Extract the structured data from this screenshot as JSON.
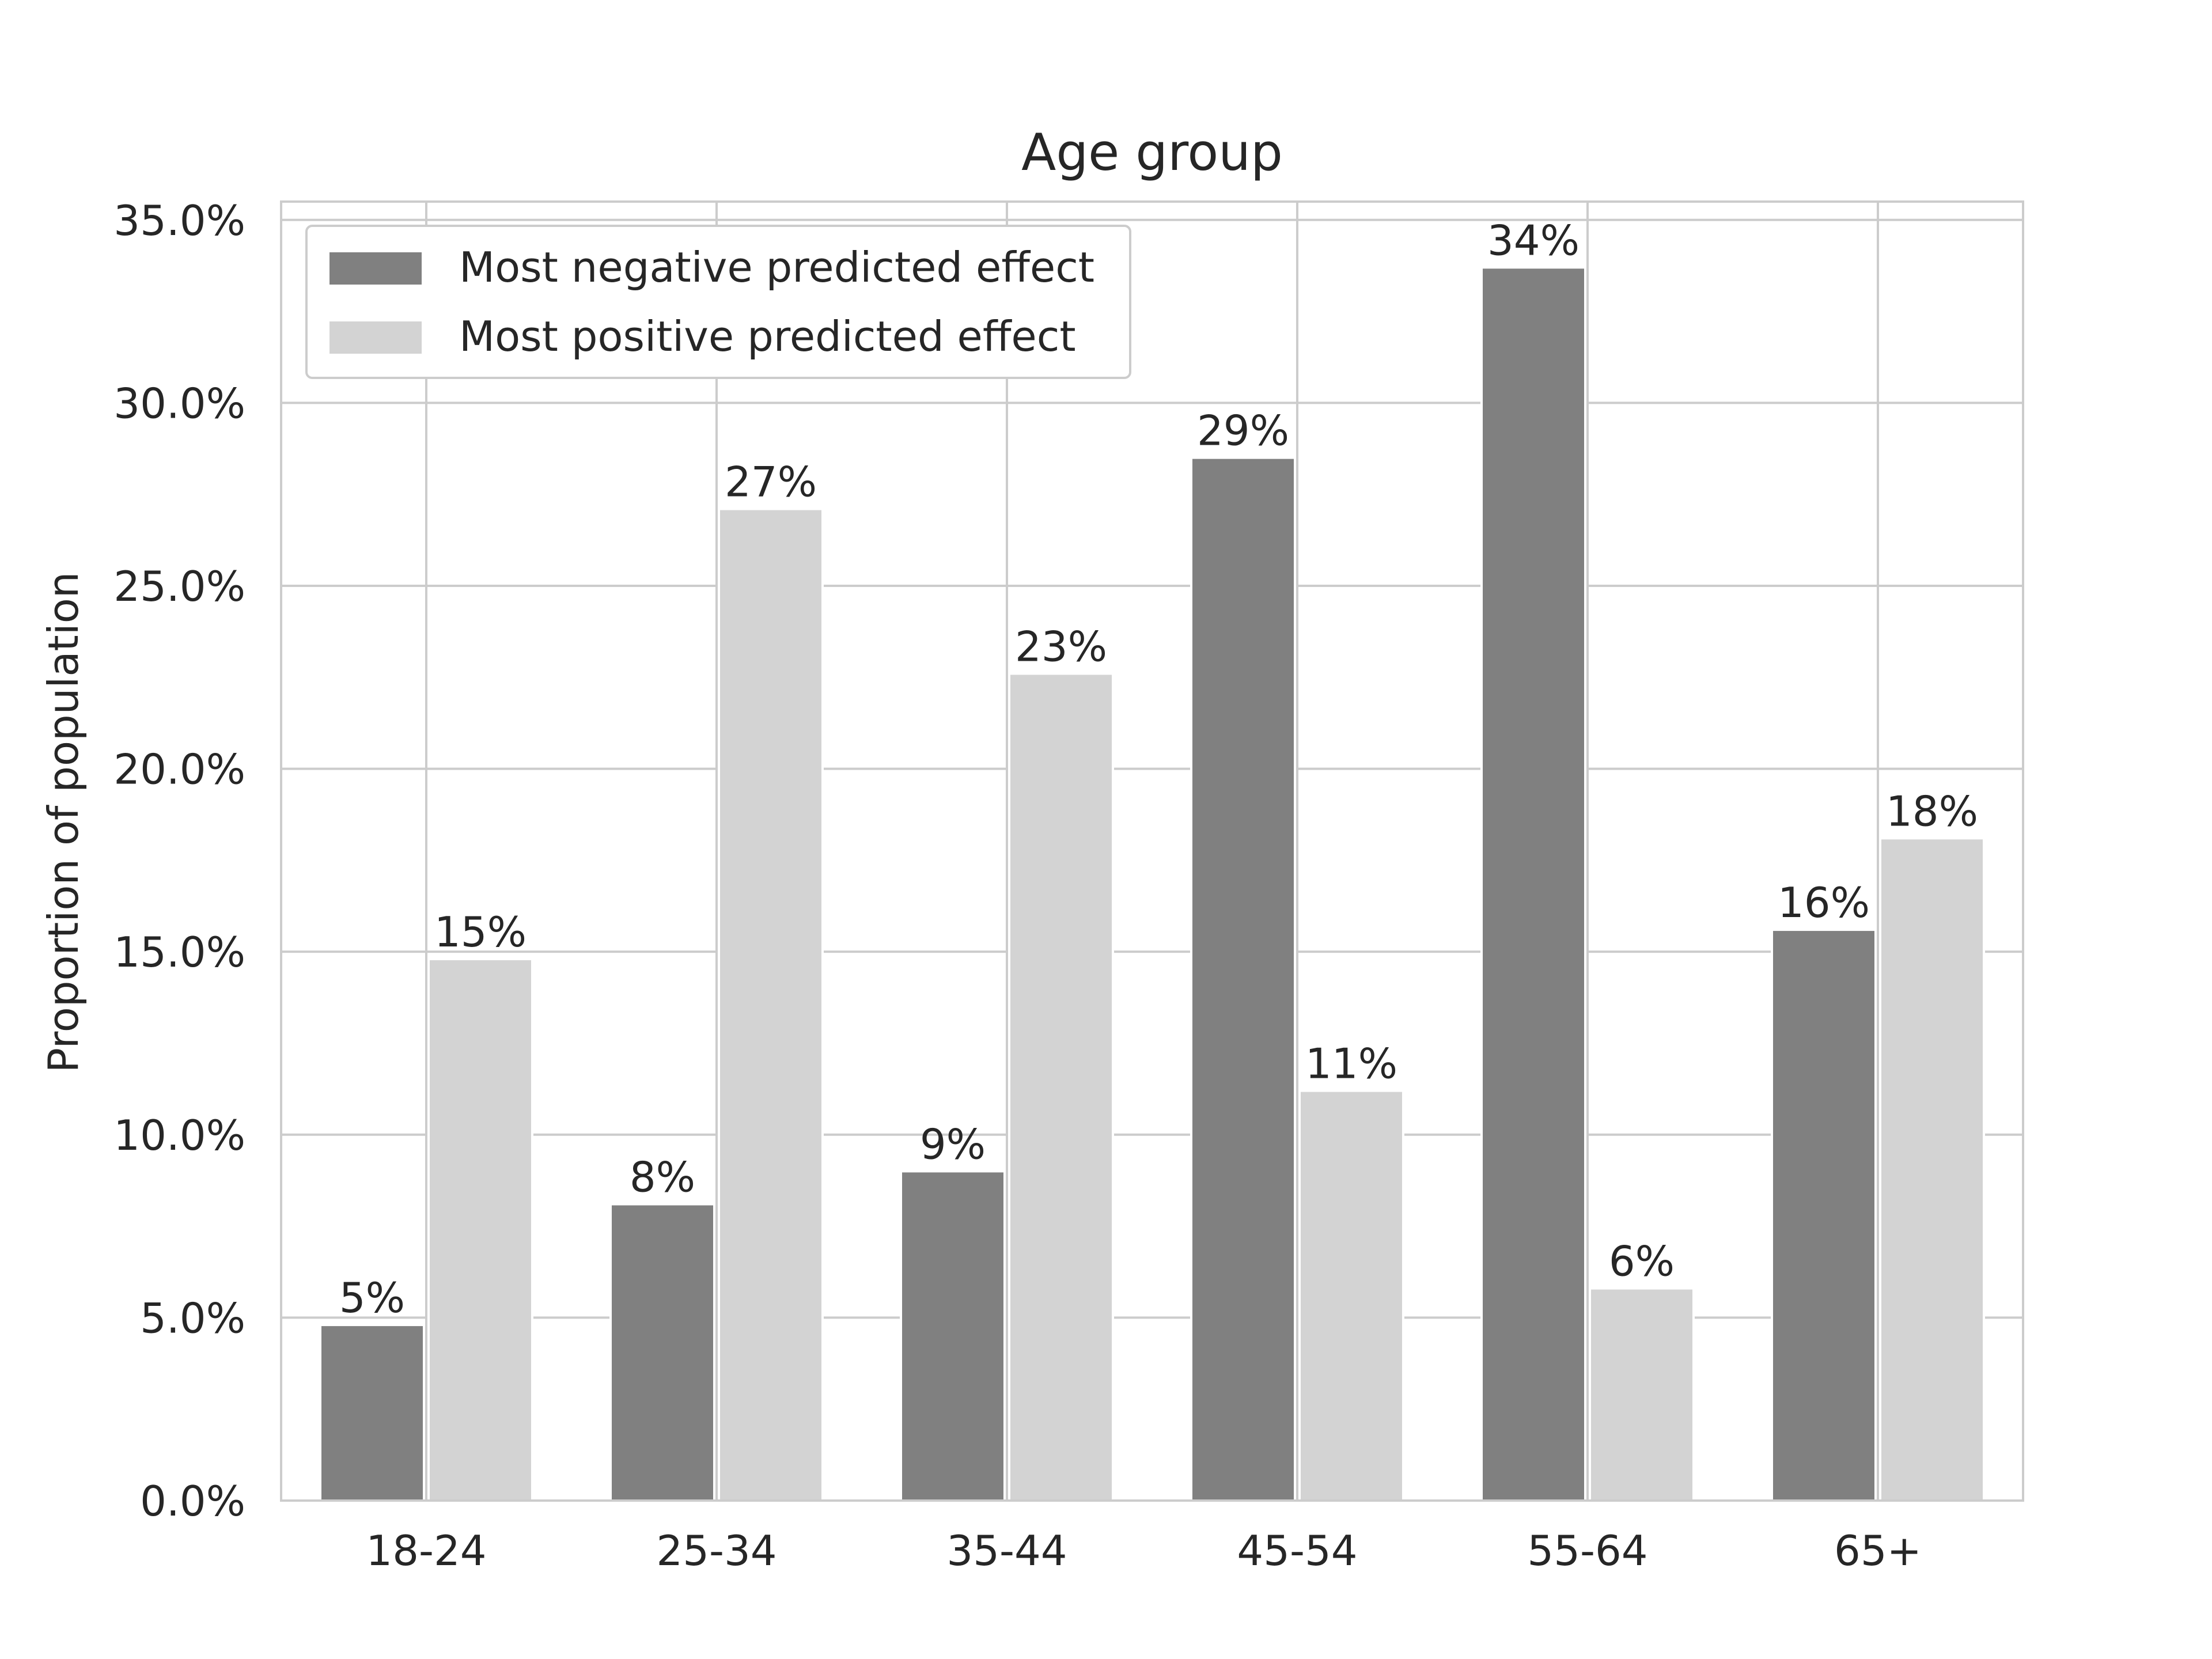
{
  "chart_data": {
    "type": "bar",
    "title": "Age group",
    "xlabel": "",
    "ylabel": "Proportion of population",
    "categories": [
      "18-24",
      "25-34",
      "35-44",
      "45-54",
      "55-64",
      "65+"
    ],
    "series": [
      {
        "name": "Most negative predicted effect",
        "color": "#808080",
        "values": [
          4.8,
          8.1,
          9.0,
          28.5,
          33.7,
          15.6
        ],
        "labels": [
          "5%",
          "8%",
          "9%",
          "29%",
          "34%",
          "16%"
        ]
      },
      {
        "name": "Most positive predicted effect",
        "color": "#d3d3d3",
        "values": [
          14.8,
          27.1,
          22.6,
          11.2,
          5.8,
          18.1
        ],
        "labels": [
          "15%",
          "27%",
          "23%",
          "11%",
          "6%",
          "18%"
        ]
      }
    ],
    "ylim": [
      0,
      35.5
    ],
    "yticks": [
      0,
      5,
      10,
      15,
      20,
      25,
      30,
      35
    ],
    "ytick_labels": [
      "0.0%",
      "5.0%",
      "10.0%",
      "15.0%",
      "20.0%",
      "25.0%",
      "30.0%",
      "35.0%"
    ],
    "grid": true,
    "legend_position": "top-left"
  }
}
